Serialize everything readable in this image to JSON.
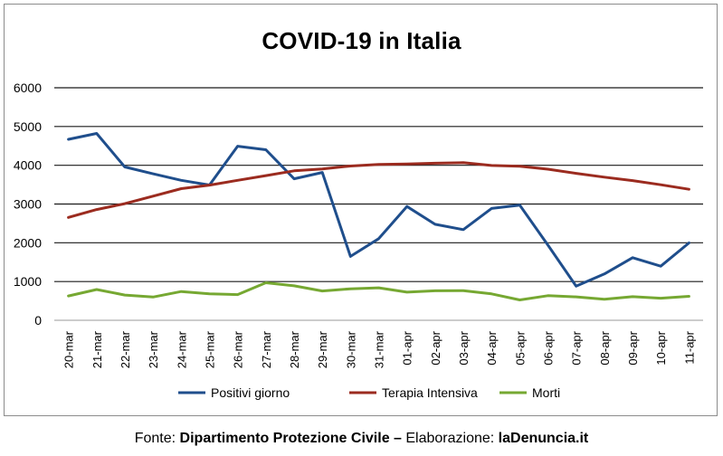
{
  "chart_data": {
    "type": "line",
    "title": "COVID-19 in Italia",
    "xlabel": "",
    "ylabel": "",
    "ylim": [
      0,
      6000
    ],
    "yticks": [
      0,
      1000,
      2000,
      3000,
      4000,
      5000,
      6000
    ],
    "grid": true,
    "legend_position": "bottom",
    "categories": [
      "20-mar",
      "21-mar",
      "22-mar",
      "23-mar",
      "24-mar",
      "25-mar",
      "26-mar",
      "27-mar",
      "28-mar",
      "29-mar",
      "30-mar",
      "31-mar",
      "01-apr",
      "02-apr",
      "03-apr",
      "04-apr",
      "05-apr",
      "06-apr",
      "07-apr",
      "08-apr",
      "09-apr",
      "10-apr",
      "11-apr"
    ],
    "series": [
      {
        "name": "Positivi giorno",
        "color": "#1f4e8c",
        "values": [
          4670,
          4821,
          3957,
          3780,
          3612,
          3491,
          4492,
          4401,
          3651,
          3815,
          1648,
          2107,
          2937,
          2477,
          2339,
          2886,
          2972,
          1941,
          880,
          1195,
          1615,
          1396,
          1996
        ]
      },
      {
        "name": "Terapia Intensiva",
        "color": "#9b2b1f",
        "values": [
          2655,
          2857,
          3009,
          3204,
          3396,
          3489,
          3612,
          3732,
          3856,
          3906,
          3981,
          4023,
          4035,
          4053,
          4068,
          3994,
          3977,
          3898,
          3792,
          3693,
          3605,
          3497,
          3381
        ]
      },
      {
        "name": "Morti",
        "color": "#76a832",
        "values": [
          627,
          793,
          651,
          601,
          743,
          683,
          662,
          969,
          889,
          756,
          812,
          837,
          727,
          760,
          766,
          681,
          525,
          636,
          604,
          542,
          610,
          570,
          619
        ]
      }
    ]
  },
  "footer": {
    "prefix": "Fonte: ",
    "source": "Dipartimento Protezione Civile –",
    "middle": " Elaborazione: ",
    "site": "laDenuncia.it"
  }
}
